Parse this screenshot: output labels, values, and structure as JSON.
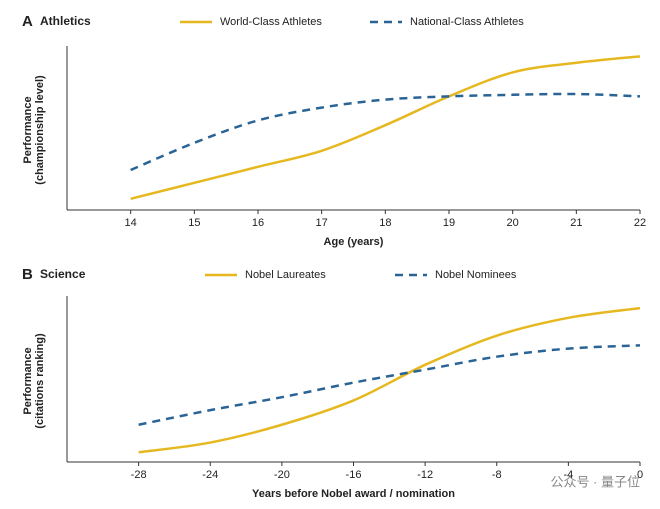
{
  "chart_data": [
    {
      "type": "line",
      "panel": "A",
      "title": "Athletics",
      "x_label": "Age (years)",
      "y_label": [
        "Performance",
        "(championship level)"
      ],
      "x": [
        14,
        15,
        16,
        17,
        18,
        19,
        20,
        21,
        22
      ],
      "xlim": [
        13,
        22
      ],
      "xticks": [
        14,
        15,
        16,
        17,
        18,
        19,
        20,
        21,
        22
      ],
      "ylim": [
        0,
        100
      ],
      "series": [
        {
          "name": "World-Class Athletes",
          "color": "#e6b820",
          "dashed": false,
          "values": [
            7,
            17,
            27,
            37,
            53,
            71,
            86,
            92,
            96
          ]
        },
        {
          "name": "National-Class Athletes",
          "color": "#2a6496",
          "dashed": true,
          "values": [
            25,
            42,
            56,
            64,
            69,
            71,
            72,
            72.5,
            71
          ]
        }
      ]
    },
    {
      "type": "line",
      "panel": "B",
      "title": "Science",
      "x_label": "Years before Nobel award / nomination",
      "y_label": [
        "Performance",
        "(citations ranking)"
      ],
      "x": [
        -28,
        -24,
        -20,
        -16,
        -12,
        -8,
        -4,
        0
      ],
      "xlim": [
        -32,
        0
      ],
      "xticks": [
        -28,
        -24,
        -20,
        -16,
        -12,
        -8,
        -4,
        0
      ],
      "ylim": [
        0,
        100
      ],
      "series": [
        {
          "name": "Nobel Laureates",
          "color": "#e6b820",
          "dashed": false,
          "values": [
            6,
            12,
            23,
            38,
            60,
            78,
            89,
            95
          ]
        },
        {
          "name": "Nobel Nominees",
          "color": "#2a6496",
          "dashed": true,
          "values": [
            23,
            32,
            40,
            49,
            57,
            65,
            70,
            72
          ]
        }
      ]
    }
  ],
  "watermark": "公众号 · 量子位"
}
